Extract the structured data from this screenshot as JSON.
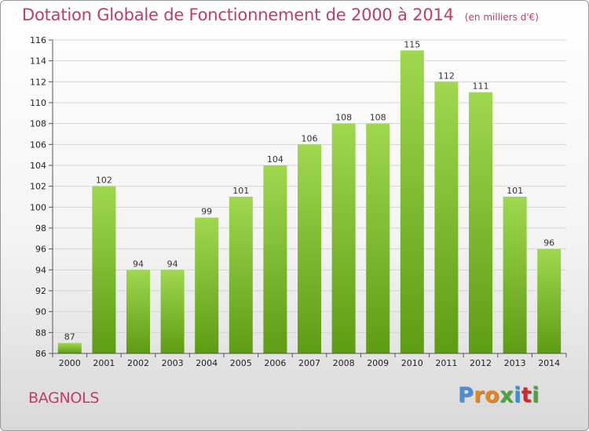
{
  "title": "Dotation Globale de Fonctionnement de 2000 à 2014",
  "subtitle": "(en milliers d'€)",
  "commune": "BAGNOLS",
  "logo": {
    "letters": [
      "P",
      "r",
      "o",
      "x",
      "i",
      "t",
      "i"
    ]
  },
  "colors": {
    "title": "#c23a6a",
    "bar_light": "#9fd84e",
    "bar_dark": "#5e9c14",
    "logo": [
      "#4a8fd6",
      "#e8831a",
      "#e8831a",
      "#4aa63a",
      "#3a8fd6",
      "#cc2a2a",
      "#4aa63a"
    ]
  },
  "chart_data": {
    "type": "bar",
    "categories": [
      "2000",
      "2001",
      "2002",
      "2003",
      "2004",
      "2005",
      "2006",
      "2007",
      "2008",
      "2009",
      "2010",
      "2011",
      "2012",
      "2013",
      "2014"
    ],
    "values": [
      87,
      102,
      94,
      94,
      99,
      101,
      104,
      106,
      108,
      108,
      115,
      112,
      111,
      101,
      96
    ],
    "ylim": [
      86,
      116
    ],
    "yticks": [
      86,
      88,
      90,
      92,
      94,
      96,
      98,
      100,
      102,
      104,
      106,
      108,
      110,
      112,
      114,
      116
    ],
    "grid": true,
    "data_labels": true
  }
}
